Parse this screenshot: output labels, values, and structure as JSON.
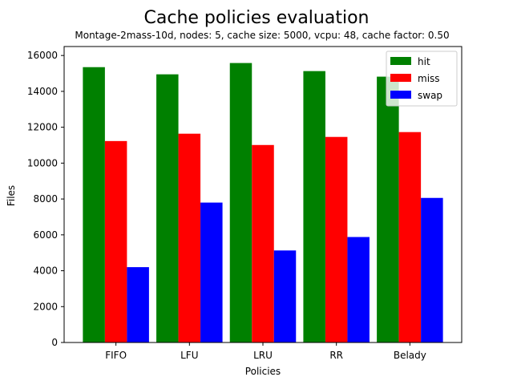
{
  "chart_data": {
    "type": "bar",
    "title": "Cache policies evaluation",
    "subtitle": "Montage-2mass-10d, nodes: 5, cache size: 5000, vcpu: 48, cache factor: 0.50",
    "xlabel": "Policies",
    "ylabel": "Files",
    "categories": [
      "FIFO",
      "LFU",
      "LRU",
      "RR",
      "Belady"
    ],
    "series": [
      {
        "name": "hit",
        "color": "#008000",
        "values": [
          15350,
          14950,
          15580,
          15130,
          14820
        ]
      },
      {
        "name": "miss",
        "color": "#ff0000",
        "values": [
          11230,
          11640,
          11010,
          11460,
          11730
        ]
      },
      {
        "name": "swap",
        "color": "#0000ff",
        "values": [
          4200,
          7800,
          5130,
          5880,
          8060
        ]
      }
    ],
    "ylim": [
      0,
      16500
    ],
    "yticks": [
      0,
      2000,
      4000,
      6000,
      8000,
      10000,
      12000,
      14000,
      16000
    ],
    "grid": false,
    "legend_position": "top-right"
  }
}
